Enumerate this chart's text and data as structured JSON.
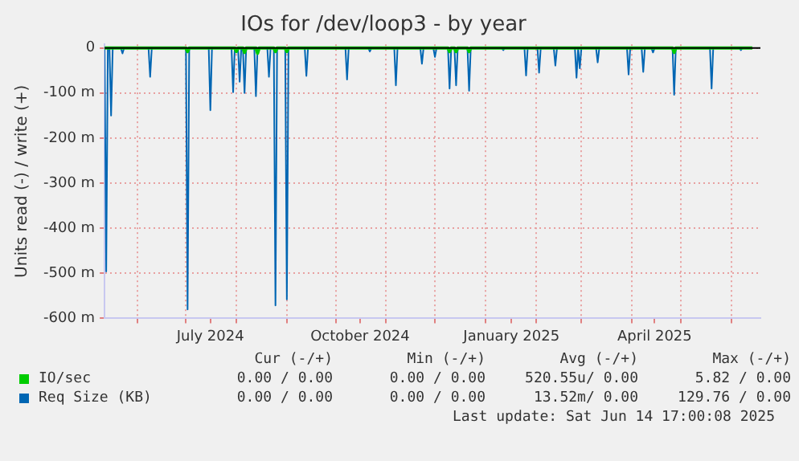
{
  "chart_data": {
    "type": "line",
    "title": "IOs for /dev/loop3 - by year",
    "ylabel": "Units read (-) / write (+)",
    "xlim": [
      "2024-05-12",
      "2025-06-19"
    ],
    "xticks": [
      {
        "value": "2024-06-01",
        "label": null
      },
      {
        "value": "2024-07-01",
        "label": null
      },
      {
        "value": "2024-07-16",
        "label": "July 2024"
      },
      {
        "value": "2024-08-01",
        "label": null
      },
      {
        "value": "2024-09-01",
        "label": null
      },
      {
        "value": "2024-10-01",
        "label": null
      },
      {
        "value": "2024-10-16",
        "label": "October 2024"
      },
      {
        "value": "2024-11-01",
        "label": null
      },
      {
        "value": "2024-12-01",
        "label": null
      },
      {
        "value": "2025-01-01",
        "label": null
      },
      {
        "value": "2025-01-17",
        "label": "January 2025"
      },
      {
        "value": "2025-02-01",
        "label": null
      },
      {
        "value": "2025-03-01",
        "label": null
      },
      {
        "value": "2025-04-01",
        "label": null
      },
      {
        "value": "2025-04-15",
        "label": "April 2025"
      },
      {
        "value": "2025-05-01",
        "label": null
      },
      {
        "value": "2025-06-01",
        "label": null
      }
    ],
    "ylim": [
      -600,
      8
    ],
    "yticks": [
      {
        "value": -600,
        "label": "-600 m"
      },
      {
        "value": -500,
        "label": "-500 m"
      },
      {
        "value": -400,
        "label": "-400 m"
      },
      {
        "value": -300,
        "label": "-300 m"
      },
      {
        "value": -200,
        "label": "-200 m"
      },
      {
        "value": -100,
        "label": "-100 m"
      },
      0
    ],
    "grid": true,
    "legend": "bottom",
    "marker": "none",
    "line_style": "solid",
    "ref_lines": [
      {
        "axis": "y",
        "value": 0,
        "label": null,
        "color": "#000000"
      }
    ],
    "series": [
      {
        "name": "IO/sec",
        "color": "#00cc00",
        "x": [
          "2024-05-12",
          "2024-07-01",
          "2024-07-02",
          "2024-07-03",
          "2024-07-31",
          "2024-08-01",
          "2024-08-02",
          "2024-08-05",
          "2024-08-06",
          "2024-08-07",
          "2024-08-13",
          "2024-08-14",
          "2024-08-15",
          "2024-08-24",
          "2024-08-25",
          "2024-08-26",
          "2024-08-31",
          "2024-09-01",
          "2024-09-02",
          "2024-12-09",
          "2024-12-10",
          "2024-12-11",
          "2024-12-13",
          "2024-12-14",
          "2024-12-15",
          "2024-12-21",
          "2024-12-22",
          "2024-12-23",
          "2025-04-26",
          "2025-04-27",
          "2025-04-28",
          "2025-06-14"
        ],
        "values": [
          0,
          0,
          -8,
          0,
          0,
          -8,
          0,
          0,
          -10,
          0,
          0,
          -12,
          0,
          0,
          -8,
          0,
          0,
          -8,
          0,
          0,
          -8,
          0,
          0,
          -8,
          0,
          0,
          -8,
          0,
          0,
          -10,
          0,
          0
        ]
      },
      {
        "name": "Req Size (KB)",
        "color": "#0066b3",
        "x": [
          "2024-05-12",
          "2024-05-13",
          "2024-05-14",
          "2024-05-15",
          "2024-05-16",
          "2024-05-17",
          "2024-05-22",
          "2024-05-23",
          "2024-05-24",
          "2024-06-08",
          "2024-06-09",
          "2024-06-10",
          "2024-07-01",
          "2024-07-02",
          "2024-07-03",
          "2024-07-15",
          "2024-07-16",
          "2024-07-17",
          "2024-07-29",
          "2024-07-30",
          "2024-07-31",
          "2024-08-02",
          "2024-08-03",
          "2024-08-04",
          "2024-08-05",
          "2024-08-06",
          "2024-08-07",
          "2024-08-12",
          "2024-08-13",
          "2024-08-14",
          "2024-08-20",
          "2024-08-21",
          "2024-08-22",
          "2024-08-24",
          "2024-08-25",
          "2024-08-26",
          "2024-08-31",
          "2024-09-01",
          "2024-09-02",
          "2024-09-12",
          "2024-09-13",
          "2024-09-14",
          "2024-10-07",
          "2024-10-08",
          "2024-10-09",
          "2024-10-21",
          "2024-10-22",
          "2024-10-23",
          "2024-11-06",
          "2024-11-07",
          "2024-11-08",
          "2024-11-22",
          "2024-11-23",
          "2024-11-24",
          "2024-11-30",
          "2024-12-01",
          "2024-12-02",
          "2024-12-09",
          "2024-12-10",
          "2024-12-11",
          "2024-12-13",
          "2024-12-14",
          "2024-12-15",
          "2024-12-21",
          "2024-12-22",
          "2024-12-23",
          "2025-01-11",
          "2025-01-12",
          "2025-01-13",
          "2025-01-25",
          "2025-01-26",
          "2025-01-27",
          "2025-02-02",
          "2025-02-03",
          "2025-02-04",
          "2025-02-12",
          "2025-02-13",
          "2025-02-14",
          "2025-02-25",
          "2025-02-26",
          "2025-02-27",
          "2025-02-28",
          "2025-03-01",
          "2025-03-10",
          "2025-03-11",
          "2025-03-12",
          "2025-03-29",
          "2025-03-30",
          "2025-03-31",
          "2025-04-07",
          "2025-04-08",
          "2025-04-09",
          "2025-04-13",
          "2025-04-14",
          "2025-04-15",
          "2025-04-26",
          "2025-04-27",
          "2025-04-28",
          "2025-05-19",
          "2025-05-20",
          "2025-05-21",
          "2025-06-06",
          "2025-06-07",
          "2025-06-08",
          "2025-06-14"
        ],
        "values": [
          0,
          -496,
          0,
          0,
          -150,
          0,
          0,
          -12,
          0,
          0,
          -64,
          0,
          0,
          -580,
          0,
          0,
          -138,
          0,
          0,
          -98,
          0,
          0,
          -75,
          0,
          0,
          -100,
          0,
          0,
          -107,
          0,
          0,
          -64,
          0,
          0,
          -571,
          0,
          0,
          -558,
          0,
          0,
          -62,
          0,
          0,
          -70,
          0,
          0,
          -8,
          0,
          0,
          -83,
          0,
          0,
          -35,
          0,
          0,
          -20,
          0,
          0,
          -90,
          0,
          0,
          -83,
          0,
          0,
          -95,
          0,
          0,
          -5,
          0,
          0,
          -61,
          0,
          0,
          -55,
          0,
          0,
          -39,
          0,
          0,
          -66,
          0,
          -45,
          0,
          0,
          -32,
          0,
          0,
          -59,
          0,
          0,
          -53,
          0,
          0,
          -10,
          0,
          0,
          -104,
          0,
          0,
          -90,
          0,
          0,
          -5,
          0,
          0
        ]
      }
    ],
    "annotations": [
      "Cur (-/+)",
      "Min (-/+)",
      "Avg (-/+)",
      "Max (-/+)",
      "0.00 / 0.00",
      "0.00 / 0.00",
      "520.55u/ 0.00",
      "5.82 / 0.00",
      "0.00 / 0.00",
      "0.00 / 0.00",
      "13.52m/ 0.00",
      "129.76 / 0.00",
      "Last update: Sat Jun 14 17:00:08 2025"
    ]
  }
}
